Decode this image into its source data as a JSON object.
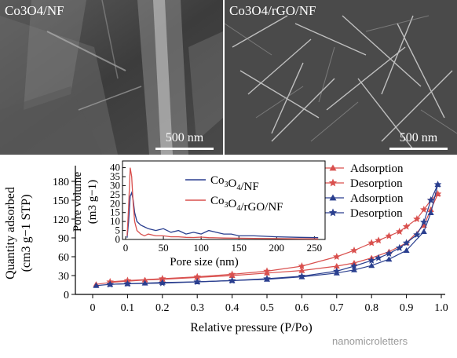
{
  "panels": [
    {
      "label": "Co3O4/NF",
      "scale_label": "500 nm"
    },
    {
      "label": "Co3O4/rGO/NF",
      "scale_label": "500 nm"
    }
  ],
  "colors": {
    "co3o4_nf": "#2a3f8f",
    "co3o4_rgo_nf": "#d9504e"
  },
  "chart_data": [
    {
      "type": "line",
      "xlabel": "Relative pressure (P/Po)",
      "ylabel_line1": "Quantity adsorbed",
      "ylabel_line2": "(cm3 g−1 STP)",
      "xlim": [
        0,
        1.0
      ],
      "ylim": [
        0,
        195
      ],
      "x_ticks": [
        "0",
        "0.1",
        "0.2",
        "0.3",
        "0.4",
        "0.5",
        "0.6",
        "0.7",
        "0.8",
        "0.9",
        "1.0"
      ],
      "y_ticks": [
        "0",
        "30",
        "60",
        "90",
        "120",
        "150",
        "180"
      ],
      "legend": [
        "Adsorption",
        "Desorption",
        "Adsorption",
        "Desorption"
      ],
      "series": [
        {
          "name": "Adsorption",
          "group": "co3o4_rgo_nf",
          "marker": "triangle",
          "x": [
            0.01,
            0.05,
            0.1,
            0.15,
            0.2,
            0.3,
            0.4,
            0.5,
            0.6,
            0.7,
            0.75,
            0.8,
            0.85,
            0.9,
            0.95,
            0.97,
            0.99
          ],
          "y": [
            16,
            19,
            21,
            23,
            24,
            27,
            30,
            34,
            38,
            45,
            50,
            58,
            68,
            82,
            110,
            135,
            160
          ]
        },
        {
          "name": "Desorption",
          "group": "co3o4_rgo_nf",
          "marker": "star",
          "x": [
            0.99,
            0.97,
            0.95,
            0.93,
            0.9,
            0.88,
            0.85,
            0.82,
            0.8,
            0.75,
            0.7,
            0.6,
            0.5,
            0.4,
            0.3,
            0.2,
            0.1,
            0.05
          ],
          "y": [
            160,
            150,
            135,
            120,
            108,
            100,
            93,
            86,
            82,
            70,
            60,
            45,
            37,
            32,
            28,
            25,
            22,
            20
          ]
        },
        {
          "name": "Adsorption",
          "group": "co3o4_nf",
          "marker": "triangle",
          "x": [
            0.01,
            0.05,
            0.1,
            0.15,
            0.2,
            0.3,
            0.4,
            0.5,
            0.6,
            0.7,
            0.75,
            0.8,
            0.85,
            0.9,
            0.95,
            0.97,
            0.99
          ],
          "y": [
            14,
            16,
            17,
            18,
            19,
            20,
            22,
            24,
            28,
            34,
            39,
            46,
            56,
            70,
            100,
            130,
            175
          ]
        },
        {
          "name": "Desorption",
          "group": "co3o4_nf",
          "marker": "star",
          "x": [
            0.99,
            0.97,
            0.95,
            0.93,
            0.9,
            0.88,
            0.85,
            0.82,
            0.8,
            0.75,
            0.7,
            0.6,
            0.5,
            0.4,
            0.3,
            0.2,
            0.1,
            0.05
          ],
          "y": [
            175,
            150,
            115,
            95,
            82,
            74,
            65,
            58,
            54,
            45,
            37,
            29,
            25,
            22,
            20,
            18,
            17,
            16
          ]
        }
      ]
    },
    {
      "type": "line",
      "xlabel": "Pore size (nm)",
      "ylabel_line1": "Pore volume",
      "ylabel_line2": "(m3 g−1)",
      "xlim": [
        0,
        260
      ],
      "ylim": [
        0,
        42
      ],
      "x_ticks": [
        "0",
        "50",
        "100",
        "150",
        "200",
        "250"
      ],
      "y_ticks": [
        "0",
        "5",
        "10",
        "15",
        "20",
        "25",
        "30",
        "35",
        "40"
      ],
      "legend": [
        "Co3O4/NF",
        "Co3O4/rGO/NF"
      ],
      "series": [
        {
          "name": "Co3O4/NF",
          "group": "co3o4_nf",
          "x": [
            2,
            4,
            6,
            8,
            10,
            12,
            15,
            20,
            25,
            30,
            40,
            50,
            60,
            70,
            80,
            90,
            100,
            110,
            120,
            130,
            140,
            150,
            170,
            200,
            230,
            255
          ],
          "y": [
            1,
            10,
            24,
            26,
            22,
            15,
            10,
            8,
            7,
            6,
            5,
            6,
            4,
            5,
            3,
            4,
            3,
            5,
            4,
            3,
            3,
            2,
            2,
            1.5,
            1.2,
            1
          ]
        },
        {
          "name": "Co3O4/rGO/NF",
          "group": "co3o4_rgo_nf",
          "x": [
            2,
            4,
            6,
            8,
            10,
            12,
            15,
            20,
            25,
            30,
            40,
            50,
            60,
            70,
            80,
            90,
            100,
            110,
            120,
            130,
            150,
            170,
            200,
            230,
            255
          ],
          "y": [
            2,
            18,
            40,
            35,
            20,
            10,
            5,
            3,
            2,
            3,
            2,
            2,
            1.5,
            1.5,
            1.2,
            1.1,
            1.3,
            1,
            0.9,
            0.8,
            0.7,
            0.6,
            0.5,
            0.4,
            0.3
          ]
        }
      ]
    }
  ],
  "watermark": "nanomicroletters"
}
